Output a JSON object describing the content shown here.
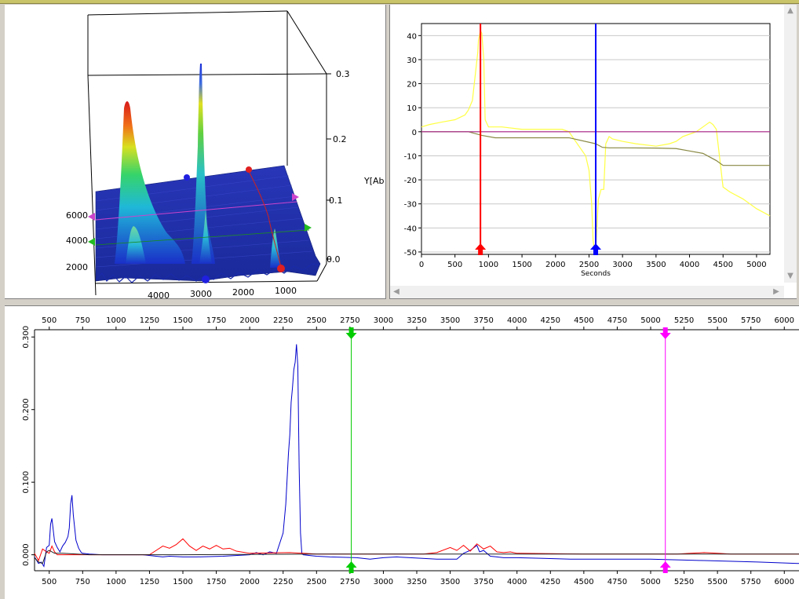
{
  "surface3d": {
    "x_ticks": [
      "4000",
      "3000",
      "2000",
      "1000"
    ],
    "y_ticks": [
      "6000",
      "4000",
      "2000"
    ],
    "z_ticks": [
      "0.3",
      "0.2",
      "0.1",
      "0.0"
    ],
    "z_label": "Y[Ab"
  },
  "time_panel": {
    "scroll_up_icon": "triangle-up",
    "scroll_down_icon": "triangle-down",
    "scroll_left_icon": "triangle-left",
    "scroll_right_icon": "triangle-right"
  },
  "chart_data": [
    {
      "type": "line",
      "xlabel": "Seconds",
      "ylabel": "",
      "xlim": [
        0,
        5200
      ],
      "ylim": [
        -51,
        45
      ],
      "x_ticks": [
        0,
        500,
        1000,
        1500,
        2000,
        2500,
        3000,
        3500,
        4000,
        4500,
        5000
      ],
      "y_ticks": [
        40,
        30,
        20,
        10,
        0,
        -10,
        -20,
        -30,
        -40,
        -50
      ],
      "grid": true,
      "cursors": [
        {
          "x": 880,
          "color": "#ff0000"
        },
        {
          "x": 2600,
          "color": "#0000ff"
        }
      ],
      "series": [
        {
          "color": "#ffff44",
          "x": [
            0,
            120,
            300,
            500,
            650,
            700,
            760,
            800,
            840,
            850,
            880,
            900,
            930,
            950,
            1000,
            1200,
            1500,
            1800,
            2000,
            2100,
            2200,
            2250,
            2350,
            2450,
            2500,
            2540,
            2560,
            2580,
            2600,
            2640,
            2680,
            2720,
            2750,
            2800,
            2850,
            3000,
            3200,
            3500,
            3700,
            3800,
            3900,
            4000,
            4100,
            4200,
            4300,
            4350,
            4400,
            4500,
            4600,
            4800,
            5000,
            5200
          ],
          "y": [
            2,
            3,
            4,
            5,
            7,
            9,
            13,
            23,
            33,
            38,
            42,
            41,
            30,
            5,
            2,
            2,
            1,
            1,
            1,
            1,
            0,
            -2,
            -6,
            -10,
            -16,
            -30,
            -45,
            -49,
            -49,
            -28,
            -24,
            -24,
            -5,
            -2,
            -3,
            -4,
            -5,
            -6,
            -5,
            -4,
            -2,
            -1,
            0,
            2,
            4,
            3,
            1,
            -23,
            -25,
            -28,
            -32,
            -35
          ]
        },
        {
          "color": "#888844",
          "x": [
            0,
            700,
            900,
            1100,
            2200,
            2600,
            2700,
            2800,
            3000,
            3500,
            3800,
            4000,
            4200,
            4400,
            4500,
            4600,
            5000,
            5200
          ],
          "y": [
            0,
            0,
            -1.5,
            -2.5,
            -2.5,
            -5,
            -6.5,
            -6.7,
            -6.7,
            -6.8,
            -7,
            -8,
            -9,
            -12,
            -14,
            -14,
            -14,
            -14
          ]
        },
        {
          "color": "#aa2288",
          "x": [
            0,
            5200
          ],
          "y": [
            0,
            0
          ]
        }
      ]
    },
    {
      "type": "line",
      "xlim": [
        390,
        6110
      ],
      "ylim": [
        -0.022,
        0.31
      ],
      "x_ticks": [
        500,
        750,
        1000,
        1250,
        1500,
        1750,
        2000,
        2250,
        2500,
        2750,
        3000,
        3250,
        3500,
        3750,
        4000,
        4250,
        4500,
        4750,
        5000,
        5250,
        5500,
        5750,
        6000
      ],
      "y_ticks": [
        0.3,
        0.2,
        0.1,
        0.0
      ],
      "y_tick_labels": [
        "0.300",
        "0.200",
        "0.100",
        "0.000"
      ],
      "cursors": [
        {
          "x": 2760,
          "color": "#00cc00"
        },
        {
          "x": 5110,
          "color": "#ff00ff"
        }
      ],
      "series": [
        {
          "color": "#0000cc",
          "x": [
            390,
            420,
            440,
            460,
            480,
            500,
            510,
            520,
            540,
            560,
            580,
            600,
            620,
            640,
            650,
            660,
            670,
            680,
            700,
            720,
            740,
            750,
            800,
            900,
            1000,
            1200,
            1300,
            1350,
            1400,
            1500,
            1600,
            1800,
            2000,
            2050,
            2100,
            2150,
            2200,
            2250,
            2270,
            2290,
            2300,
            2310,
            2320,
            2330,
            2340,
            2350,
            2360,
            2370,
            2380,
            2390,
            2400,
            2450,
            2500,
            2600,
            2800,
            2900,
            3000,
            3100,
            3200,
            3400,
            3550,
            3600,
            3650,
            3700,
            3720,
            3750,
            3800,
            3850,
            3900,
            4000,
            4200,
            4400,
            4600,
            5000,
            5400,
            5800,
            6110
          ],
          "y": [
            -0.003,
            -0.012,
            -0.01,
            -0.016,
            0.01,
            0.013,
            0.042,
            0.05,
            0.018,
            0.01,
            0.004,
            0.012,
            0.017,
            0.025,
            0.037,
            0.07,
            0.082,
            0.055,
            0.02,
            0.009,
            0.003,
            0.002,
            0.001,
            0.0,
            0.0,
            0.0,
            -0.002,
            -0.003,
            -0.002,
            -0.003,
            -0.003,
            -0.002,
            0.0,
            0.003,
            0.0,
            0.004,
            0.002,
            0.03,
            0.07,
            0.14,
            0.165,
            0.21,
            0.23,
            0.255,
            0.265,
            0.29,
            0.26,
            0.12,
            0.03,
            0.002,
            0.0,
            -0.001,
            -0.002,
            -0.003,
            -0.004,
            -0.006,
            -0.004,
            -0.003,
            -0.004,
            -0.006,
            -0.006,
            0.002,
            0.006,
            0.013,
            0.004,
            0.006,
            -0.002,
            -0.003,
            -0.004,
            -0.004,
            -0.005,
            -0.006,
            -0.006,
            -0.006,
            -0.008,
            -0.01,
            -0.012
          ]
        },
        {
          "color": "#ff0000",
          "x": [
            390,
            420,
            450,
            480,
            500,
            520,
            540,
            560,
            600,
            700,
            800,
            1000,
            1250,
            1300,
            1350,
            1400,
            1450,
            1500,
            1550,
            1600,
            1650,
            1700,
            1750,
            1800,
            1850,
            1900,
            2000,
            2300,
            2400,
            2500,
            2800,
            3300,
            3400,
            3500,
            3550,
            3600,
            3650,
            3700,
            3750,
            3800,
            3850,
            3900,
            3950,
            4000,
            4500,
            5200,
            5300,
            5400,
            5500,
            5600,
            6110
          ],
          "y": [
            0.002,
            -0.008,
            0.008,
            0.004,
            0.002,
            0.012,
            0.004,
            0.0,
            0.0,
            0.0,
            0.0,
            0.0,
            0.0,
            0.006,
            0.012,
            0.009,
            0.014,
            0.022,
            0.012,
            0.006,
            0.012,
            0.008,
            0.013,
            0.008,
            0.009,
            0.005,
            0.002,
            0.003,
            0.002,
            0.001,
            0.001,
            0.001,
            0.003,
            0.01,
            0.006,
            0.013,
            0.005,
            0.015,
            0.008,
            0.012,
            0.004,
            0.003,
            0.004,
            0.002,
            0.001,
            0.001,
            0.002,
            0.003,
            0.002,
            0.001,
            0.001
          ]
        },
        {
          "color": "#222222",
          "x": [
            390,
            420,
            450,
            480,
            500,
            540,
            600,
            800,
            1500,
            2500,
            3500,
            4500,
            5500,
            6110
          ],
          "y": [
            -0.004,
            -0.01,
            -0.012,
            0.004,
            0.006,
            0.002,
            0.002,
            0.0,
            0.0,
            0.001,
            0.001,
            0.001,
            0.001,
            0.001
          ]
        }
      ]
    }
  ]
}
